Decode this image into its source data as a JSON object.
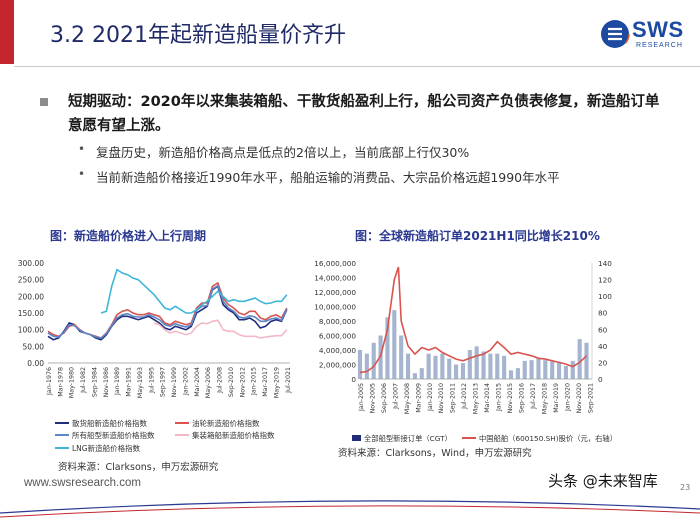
{
  "slide": {
    "title": "3.2 2021年起新造船量价齐升",
    "logo_text": "SWS",
    "logo_sub": "RESEARCH",
    "main_point": "短期驱动：2020年以来集装箱船、干散货船盈利上行，船公司资产负债表修复，新造船订单意愿有望上涨。",
    "bullets": [
      "复盘历史，新造船价格高点是低点的2倍以上，当前底部上行仅30%",
      "当前新造船价格接近1990年水平，船舶运输的消费品、大宗品价格远超1990年水平"
    ],
    "footer_url": "www.swsresearch.com",
    "watermark": "头条 @未来智库",
    "page_number": "23"
  },
  "charts": {
    "left_title": "图：新造船价格进入上行周期",
    "left_source": "资料来源：Clarksons，申万宏源研究",
    "right_title": "图：全球新造船订单2021H1同比增长210%",
    "right_source": "资料来源：Clarksons，Wind，申万宏源研究"
  },
  "chart_data": [
    {
      "type": "line",
      "title": "图：新造船价格进入上行周期",
      "ylim": [
        0,
        300
      ],
      "yticks": [
        "300.00",
        "250.00",
        "200.00",
        "150.00",
        "100.00",
        "50.00",
        "0.00"
      ],
      "xticks": [
        "Jan-1976",
        "Mar-1978",
        "May-1980",
        "Jul-1982",
        "Sep-1984",
        "Nov-1986",
        "Jan-1989",
        "Mar-1991",
        "May-1993",
        "Jul-1995",
        "Sep-1997",
        "Nov-1999",
        "Jan-2002",
        "Mar-2004",
        "May-2006",
        "Jul-2008",
        "Sep-2010",
        "Nov-2012",
        "Jan-2015",
        "Mar-2017",
        "May-2019",
        "Jul-2021"
      ],
      "series": [
        {
          "name": "散货船新造船价格指数",
          "color": "#1f2d7a",
          "x": [
            1976,
            1977,
            1978,
            1979,
            1980,
            1981,
            1982,
            1983,
            1984,
            1985,
            1986,
            1987,
            1988,
            1989,
            1990,
            1991,
            1992,
            1993,
            1994,
            1995,
            1996,
            1997,
            1998,
            1999,
            2000,
            2001,
            2002,
            2003,
            2004,
            2005,
            2006,
            2007,
            2008,
            2009,
            2010,
            2011,
            2012,
            2013,
            2014,
            2015,
            2016,
            2017,
            2018,
            2019,
            2020,
            2021
          ],
          "values": [
            80,
            70,
            75,
            95,
            120,
            115,
            95,
            90,
            85,
            75,
            70,
            85,
            110,
            130,
            140,
            140,
            135,
            130,
            135,
            140,
            130,
            120,
            105,
            100,
            110,
            105,
            100,
            110,
            150,
            160,
            170,
            220,
            230,
            175,
            160,
            150,
            130,
            130,
            135,
            125,
            105,
            110,
            125,
            130,
            125,
            160
          ]
        },
        {
          "name": "油轮新造船价格指数",
          "color": "#d9534f",
          "x": [
            1976,
            1977,
            1978,
            1979,
            1980,
            1981,
            1982,
            1983,
            1984,
            1985,
            1986,
            1987,
            1988,
            1989,
            1990,
            1991,
            1992,
            1993,
            1994,
            1995,
            1996,
            1997,
            1998,
            1999,
            2000,
            2001,
            2002,
            2003,
            2004,
            2005,
            2006,
            2007,
            2008,
            2009,
            2010,
            2011,
            2012,
            2013,
            2014,
            2015,
            2016,
            2017,
            2018,
            2019,
            2020,
            2021
          ],
          "values": [
            95,
            85,
            80,
            90,
            110,
            115,
            100,
            90,
            85,
            80,
            75,
            90,
            115,
            145,
            155,
            160,
            150,
            145,
            145,
            150,
            145,
            140,
            120,
            115,
            125,
            120,
            115,
            120,
            165,
            180,
            180,
            230,
            240,
            195,
            175,
            165,
            150,
            145,
            155,
            155,
            135,
            130,
            140,
            145,
            135,
            165
          ]
        },
        {
          "name": "所有船型新造船价格指数",
          "color": "#5b86c9",
          "x": [
            1976,
            1977,
            1978,
            1979,
            1980,
            1981,
            1982,
            1983,
            1984,
            1985,
            1986,
            1987,
            1988,
            1989,
            1990,
            1991,
            1992,
            1993,
            1994,
            1995,
            1996,
            1997,
            1998,
            1999,
            2000,
            2001,
            2002,
            2003,
            2004,
            2005,
            2006,
            2007,
            2008,
            2009,
            2010,
            2011,
            2012,
            2013,
            2014,
            2015,
            2016,
            2017,
            2018,
            2019,
            2020,
            2021
          ],
          "values": [
            90,
            80,
            78,
            92,
            115,
            112,
            98,
            90,
            85,
            78,
            75,
            88,
            112,
            135,
            145,
            148,
            140,
            138,
            138,
            145,
            138,
            130,
            115,
            110,
            118,
            112,
            108,
            115,
            158,
            170,
            172,
            222,
            232,
            185,
            165,
            155,
            138,
            135,
            142,
            138,
            125,
            125,
            132,
            135,
            128,
            162
          ]
        },
        {
          "name": "集装箱船新造船价格指数",
          "color": "#f2b8c6",
          "x": [
            1996,
            1997,
            1998,
            1999,
            2000,
            2001,
            2002,
            2003,
            2004,
            2005,
            2006,
            2007,
            2008,
            2009,
            2010,
            2011,
            2012,
            2013,
            2014,
            2015,
            2016,
            2017,
            2018,
            2019,
            2020,
            2021
          ],
          "values": [
            120,
            115,
            100,
            90,
            95,
            90,
            85,
            90,
            110,
            120,
            118,
            125,
            128,
            100,
            95,
            95,
            85,
            80,
            80,
            80,
            75,
            78,
            80,
            82,
            82,
            100
          ]
        },
        {
          "name": "LNG新造船价格指数",
          "color": "#3fb6d8",
          "x": [
            1986,
            1987,
            1988,
            1989,
            1990,
            1991,
            1992,
            1993,
            1994,
            1995,
            1996,
            1997,
            1998,
            1999,
            2000,
            2001,
            2002,
            2003,
            2004,
            2005,
            2006,
            2007,
            2008,
            2009,
            2010,
            2011,
            2012,
            2013,
            2014,
            2015,
            2016,
            2017,
            2018,
            2019,
            2020,
            2021
          ],
          "values": [
            150,
            155,
            230,
            280,
            270,
            265,
            255,
            250,
            235,
            220,
            205,
            185,
            165,
            160,
            170,
            160,
            150,
            150,
            160,
            175,
            185,
            200,
            215,
            200,
            185,
            190,
            185,
            185,
            190,
            195,
            185,
            178,
            180,
            185,
            185,
            205
          ]
        }
      ],
      "legend": "bottom"
    },
    {
      "type": "bar",
      "title": "图：全球新造船订单2021H1同比增长210%",
      "ylim": [
        0,
        16000000
      ],
      "y2lim": [
        0,
        140
      ],
      "yticks": [
        "16,000,000",
        "14,000,000",
        "12,000,000",
        "10,000,000",
        "8,000,000",
        "6,000,000",
        "4,000,000",
        "2,000,000",
        "0"
      ],
      "y2ticks": [
        "140",
        "120",
        "100",
        "80",
        "60",
        "40",
        "20",
        "0"
      ],
      "xticks": [
        "Jan-2005",
        "Nov-2005",
        "Sep-2006",
        "Jul-2007",
        "May-2008",
        "Mar-2009",
        "Jan-2010",
        "Nov-2010",
        "Sep-2011",
        "Jul-2012",
        "May-2013",
        "Mar-2014",
        "Jan-2015",
        "Nov-2015",
        "Sep-2016",
        "Jul-2017",
        "May-2018",
        "Mar-2019",
        "Jan-2020",
        "Nov-2020",
        "Sep-2021"
      ],
      "series": [
        {
          "name": "全部船型新接订单（CGT）",
          "color": "#1f2d7a",
          "axis": "left",
          "x": [
            2005,
            2005.5,
            2006,
            2006.5,
            2007,
            2007.5,
            2008,
            2008.5,
            2009,
            2009.5,
            2010,
            2010.5,
            2011,
            2011.5,
            2012,
            2012.5,
            2013,
            2013.5,
            2014,
            2014.5,
            2015,
            2015.5,
            2016,
            2016.5,
            2017,
            2017.5,
            2018,
            2018.5,
            2019,
            2019.5,
            2020,
            2020.5,
            2021,
            2021.5
          ],
          "values": [
            4000000,
            3500000,
            5000000,
            6000000,
            8500000,
            9500000,
            6000000,
            3500000,
            800000,
            1500000,
            3500000,
            3200000,
            3500000,
            2800000,
            2000000,
            2200000,
            4000000,
            4500000,
            3800000,
            3500000,
            3500000,
            3200000,
            1200000,
            1500000,
            2500000,
            2600000,
            2800000,
            2600000,
            2400000,
            2200000,
            1800000,
            2500000,
            5500000,
            5000000
          ]
        },
        {
          "name": "中国船舶（600150.SH)股价（元，右轴）",
          "color": "#d9534f",
          "axis": "right",
          "x": [
            2005,
            2005.5,
            2006,
            2006.5,
            2007,
            2007.5,
            2007.8,
            2008,
            2008.5,
            2009,
            2009.5,
            2010,
            2010.5,
            2011,
            2011.5,
            2012,
            2012.5,
            2013,
            2013.5,
            2014,
            2014.5,
            2015,
            2015.5,
            2016,
            2016.5,
            2017,
            2017.5,
            2018,
            2018.5,
            2019,
            2019.5,
            2020,
            2020.5,
            2021,
            2021.5
          ],
          "values": [
            8,
            9,
            15,
            28,
            60,
            120,
            135,
            70,
            40,
            30,
            38,
            35,
            38,
            32,
            28,
            24,
            22,
            25,
            28,
            30,
            35,
            45,
            38,
            30,
            32,
            30,
            28,
            25,
            24,
            22,
            20,
            18,
            15,
            20,
            28
          ]
        }
      ],
      "legend": "bottom"
    }
  ]
}
